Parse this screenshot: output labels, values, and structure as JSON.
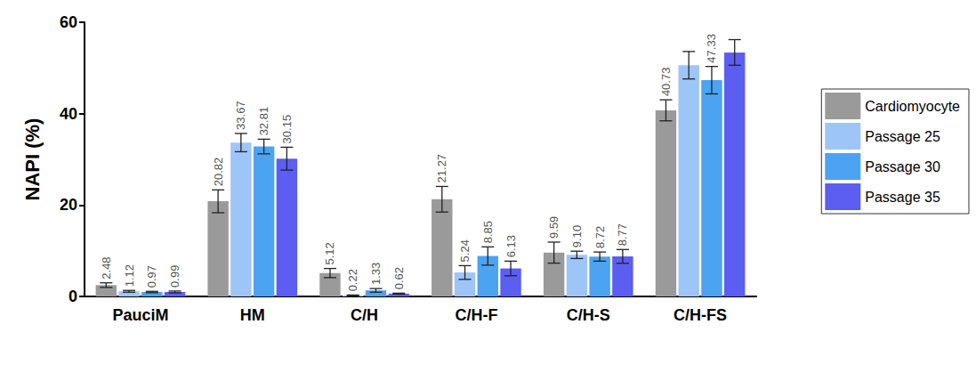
{
  "chart_data": {
    "type": "bar",
    "y_label": "NAPI (%)",
    "categories": [
      "PauciM",
      "HM",
      "C/H",
      "C/H-F",
      "C/H-S",
      "C/H-FS"
    ],
    "series": [
      {
        "name": "Cardiomyocyte",
        "color": "#9a9a9a",
        "values": [
          2.48,
          20.82,
          5.12,
          21.27,
          9.59,
          40.73
        ],
        "errors": [
          0.5,
          2.5,
          1.0,
          2.8,
          2.3,
          2.3
        ],
        "value_labels": [
          "2.48",
          "20.82",
          "5.12",
          "21.27",
          "9.59",
          "40.73"
        ]
      },
      {
        "name": "Passage 25",
        "color": "#9ec5f7",
        "values": [
          1.12,
          33.67,
          0.22,
          5.24,
          9.1,
          50.6
        ],
        "errors": [
          0.2,
          2.0,
          0.1,
          1.5,
          0.8,
          3.0
        ],
        "value_labels": [
          "1.12",
          "33.67",
          "0.22",
          "5.24",
          "9.10",
          null
        ]
      },
      {
        "name": "Passage 30",
        "color": "#4ba3f2",
        "values": [
          0.97,
          32.81,
          1.33,
          8.85,
          8.72,
          47.33
        ],
        "errors": [
          0.15,
          1.6,
          0.4,
          2.0,
          1.0,
          3.0
        ],
        "value_labels": [
          "0.97",
          "32.81",
          "1.33",
          "8.85",
          "8.72",
          "47.33"
        ]
      },
      {
        "name": "Passage 35",
        "color": "#5b5ef0",
        "values": [
          0.99,
          30.15,
          0.62,
          6.13,
          8.77,
          53.4
        ],
        "errors": [
          0.2,
          2.5,
          0.1,
          1.6,
          1.5,
          2.8
        ],
        "value_labels": [
          "0.99",
          "30.15",
          "0.62",
          "6.13",
          "8.77",
          null
        ]
      }
    ],
    "ylim": [
      0,
      60
    ],
    "yticks": [
      0,
      20,
      40,
      60
    ],
    "grid": false,
    "legend": "right",
    "data_labels": true
  }
}
